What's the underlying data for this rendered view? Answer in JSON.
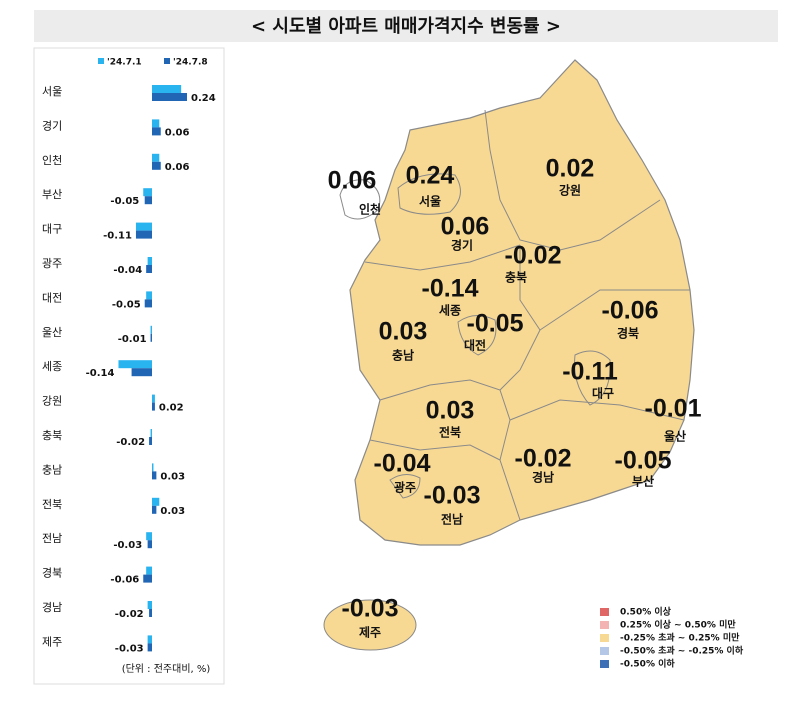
{
  "chart_data": {
    "type": "bar",
    "title": "< 시도별 아파트 매매가격지수 변동률 >",
    "categories": [
      "서울",
      "경기",
      "인천",
      "부산",
      "대구",
      "광주",
      "대전",
      "울산",
      "세종",
      "강원",
      "충북",
      "충남",
      "전북",
      "전남",
      "경북",
      "경남",
      "제주"
    ],
    "series": [
      {
        "name": "'24.7.1",
        "color": "#2ab4ef",
        "values": [
          0.2,
          0.05,
          0.05,
          -0.06,
          -0.11,
          -0.03,
          -0.04,
          -0.01,
          -0.23,
          0.02,
          -0.01,
          0.01,
          0.05,
          -0.04,
          -0.04,
          -0.03,
          -0.03
        ]
      },
      {
        "name": "'24.7.8",
        "color": "#2166b5",
        "values": [
          0.24,
          0.06,
          0.06,
          -0.05,
          -0.11,
          -0.04,
          -0.05,
          -0.01,
          -0.14,
          0.02,
          -0.02,
          0.03,
          0.03,
          -0.03,
          -0.06,
          -0.02,
          -0.03
        ]
      }
    ],
    "unit_note": "(단위 : 전주대비, %)",
    "map_legend": [
      {
        "label": "0.50% 이상",
        "color": "#e06666"
      },
      {
        "label": "0.25% 이상 ~ 0.50% 미만",
        "color": "#f4b3b3"
      },
      {
        "label": "-0.25% 초과 ~ 0.25% 미만",
        "color": "#f8d993"
      },
      {
        "label": "-0.50% 초과 ~ -0.25% 이하",
        "color": "#b4c7e7"
      },
      {
        "label": "-0.50% 이하",
        "color": "#3c6fb6"
      }
    ]
  }
}
